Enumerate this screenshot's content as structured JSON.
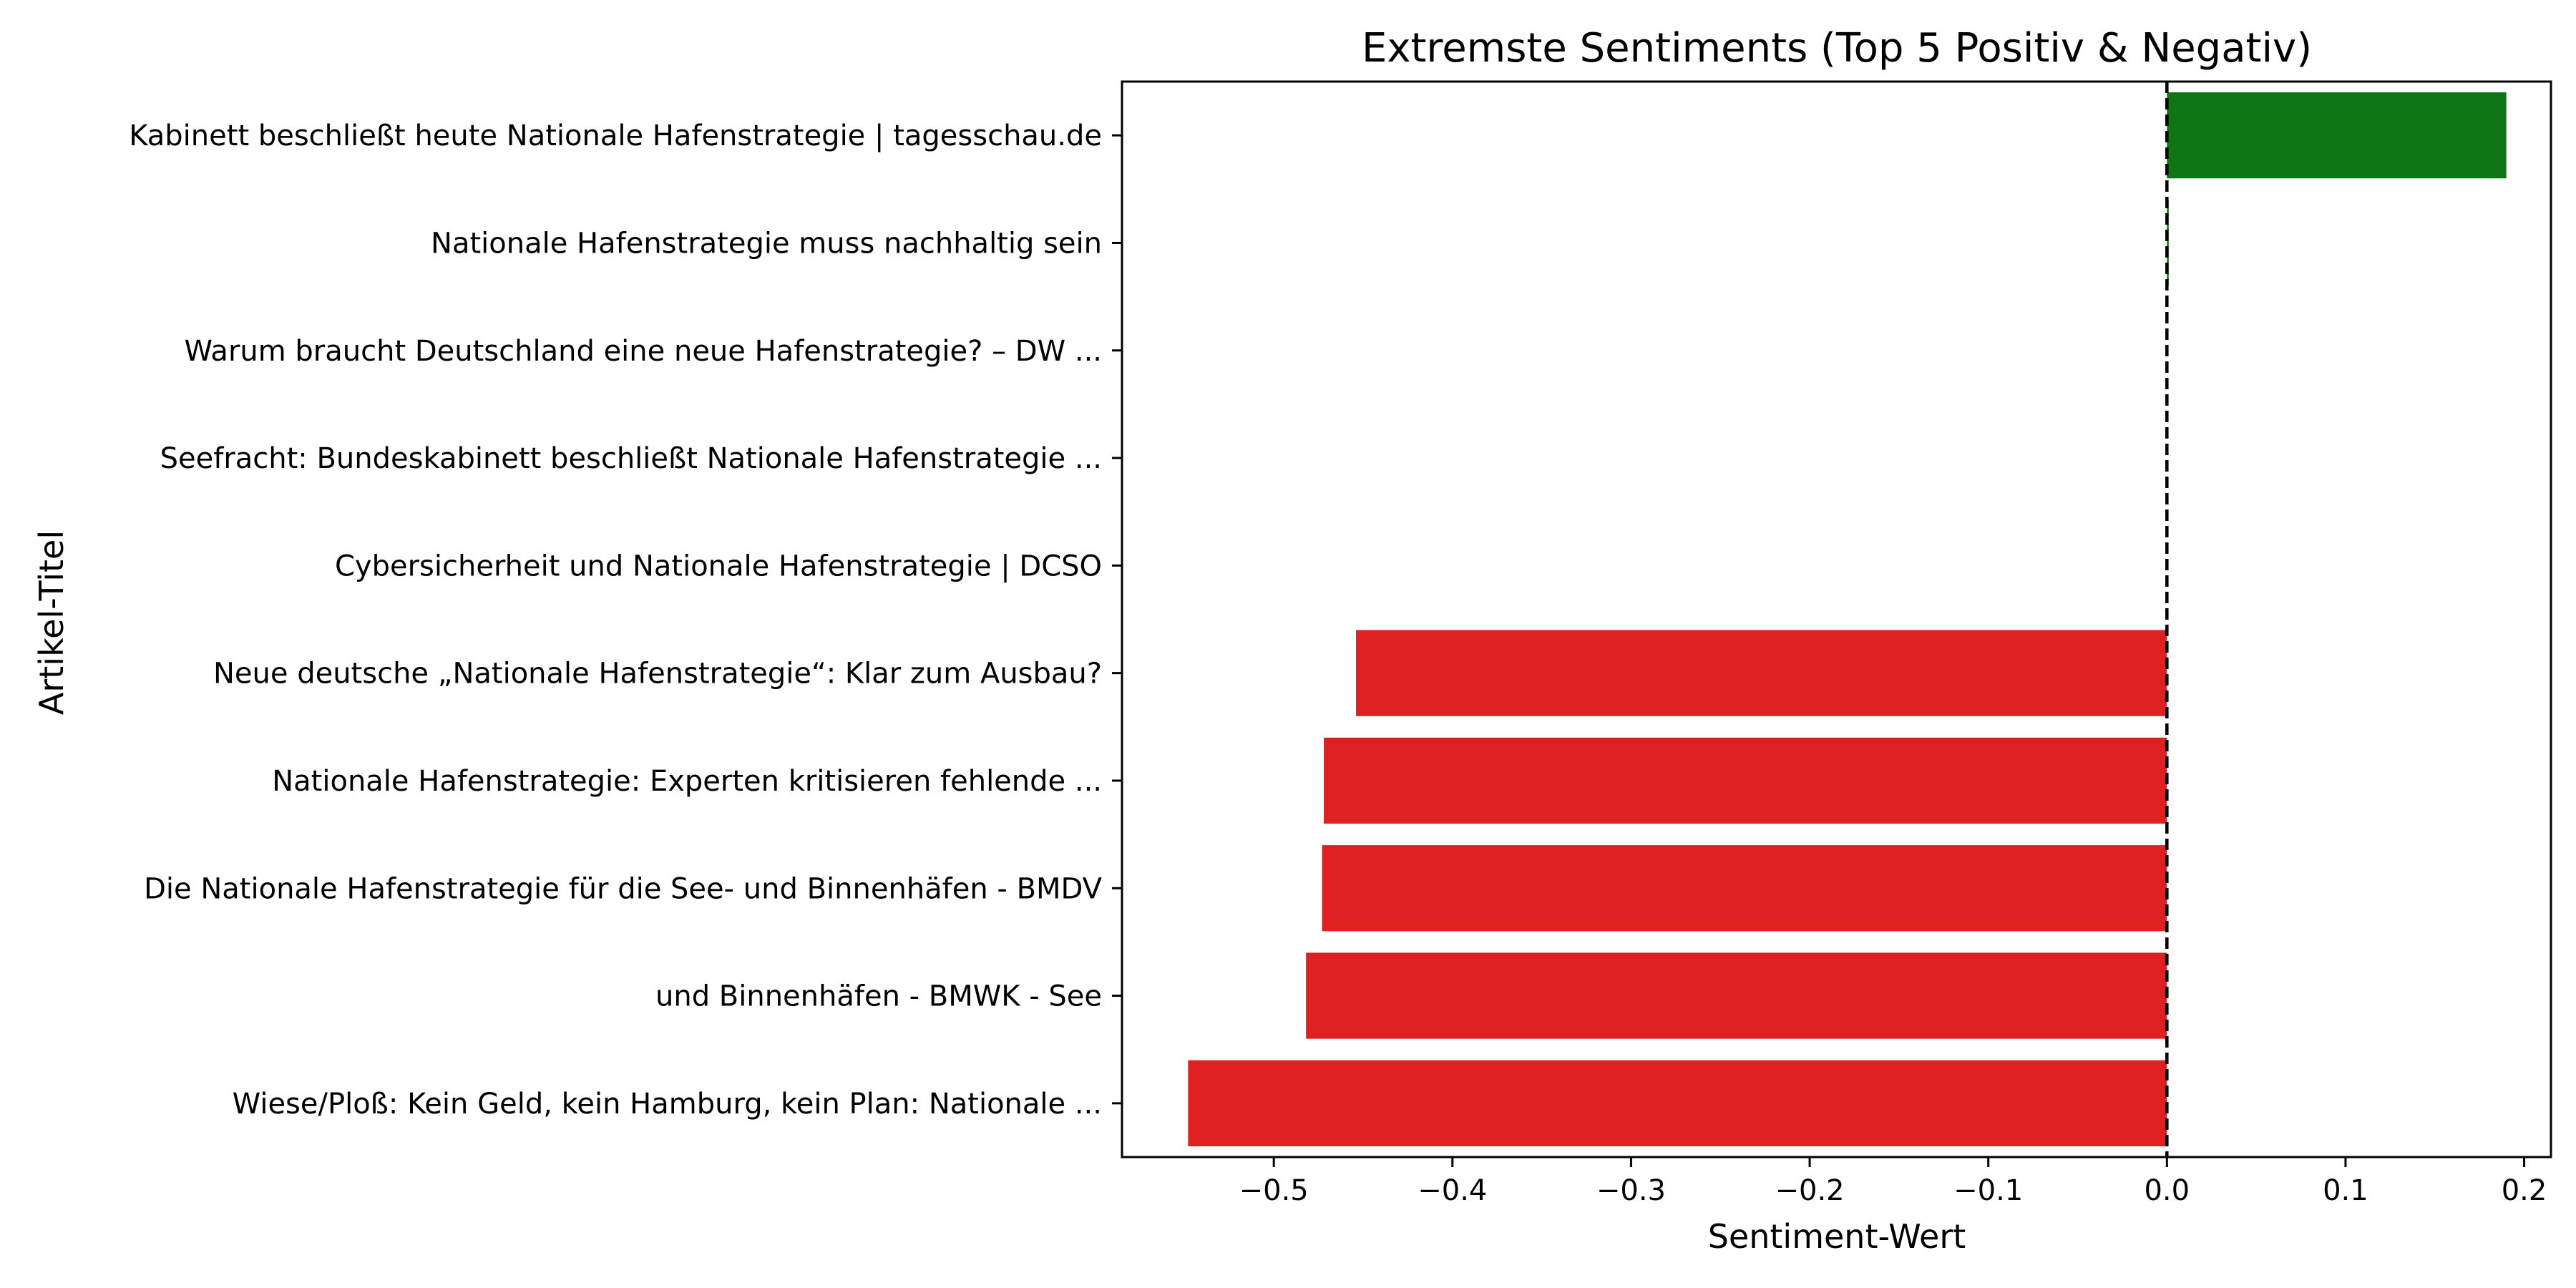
{
  "chart_data": {
    "type": "bar",
    "orientation": "horizontal",
    "title": "Extremste Sentiments (Top 5 Positiv & Negativ)",
    "xlabel": "Sentiment-Wert",
    "ylabel": "Artikel-Titel",
    "xlim": [
      -0.585,
      0.215
    ],
    "xticks": [
      -0.5,
      -0.4,
      -0.3,
      -0.2,
      -0.1,
      0.0,
      0.1,
      0.2
    ],
    "xtick_labels": [
      "−0.5",
      "−0.4",
      "−0.3",
      "−0.2",
      "−0.1",
      "0.0",
      "0.1",
      "0.2"
    ],
    "reference_line": {
      "x": 0.0,
      "style": "dashed",
      "color": "#000000"
    },
    "grid": false,
    "categories": [
      "Kabinett beschließt heute Nationale Hafenstrategie | tagesschau.de",
      "Nationale Hafenstrategie muss nachhaltig sein",
      "Warum braucht Deutschland eine neue Hafenstrategie? – DW ...",
      "Seefracht: Bundeskabinett beschließt Nationale Hafenstrategie ...",
      "Cybersicherheit und Nationale Hafenstrategie | DCSO",
      "Neue deutsche „Nationale Hafenstrategie“: Klar zum Ausbau?",
      "Nationale Hafenstrategie: Experten kritisieren fehlende ...",
      "Die Nationale Hafenstrategie für die See- und Binnenhäfen - BMDV",
      "und Binnenhäfen - BMWK - See",
      "Wiese/Ploß: Kein Geld, kein Hamburg, kein Plan: Nationale ..."
    ],
    "values": [
      0.19,
      0.001,
      0.0,
      0.0,
      0.0,
      -0.454,
      -0.472,
      -0.473,
      -0.482,
      -0.548
    ],
    "colors": {
      "positive": "#107515",
      "negative": "#df2020"
    }
  }
}
